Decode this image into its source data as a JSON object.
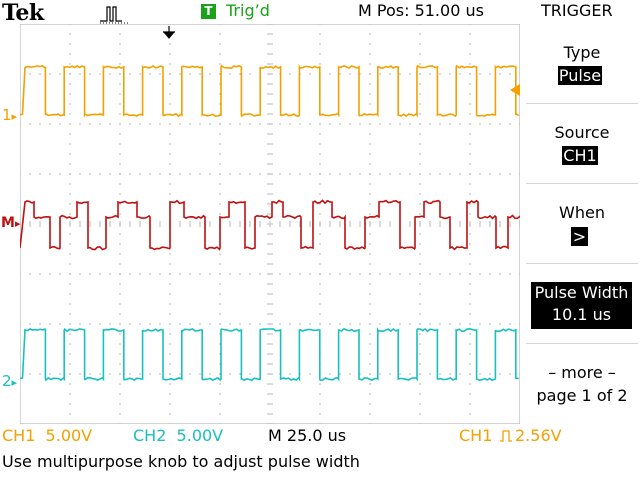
{
  "header": {
    "brand": "Tek",
    "acquisition_icon": "pulse-acquisition-icon",
    "trigger_box_letter": "T",
    "trigger_status": "Trig’d",
    "horizontal_position": "M Pos: 51.00 us"
  },
  "menu": {
    "title": "TRIGGER",
    "type_label": "Type",
    "type_value": "Pulse",
    "source_label": "Source",
    "source_value": "CH1",
    "when_label": "When",
    "when_value": ">",
    "width_label": "Pulse Width",
    "width_value": "10.1 us",
    "more_label": "– more –",
    "page_label": "page 1 of 2"
  },
  "markers": {
    "ch1": "1",
    "math": "M",
    "ch2": "2"
  },
  "footer": {
    "ch1_scale": "CH1  5.00V",
    "ch2_scale": "CH2  5.00V",
    "time_scale": "M 25.0 us",
    "trigger_source": "CH1",
    "trigger_level": "2.56V",
    "message": "Use multipurpose knob to adjust pulse width"
  },
  "colors": {
    "ch1": "#f5a000",
    "math": "#c01010",
    "ch2": "#18c0c0",
    "trig": "#1aa31a",
    "grid": "#b8b8b8"
  }
}
